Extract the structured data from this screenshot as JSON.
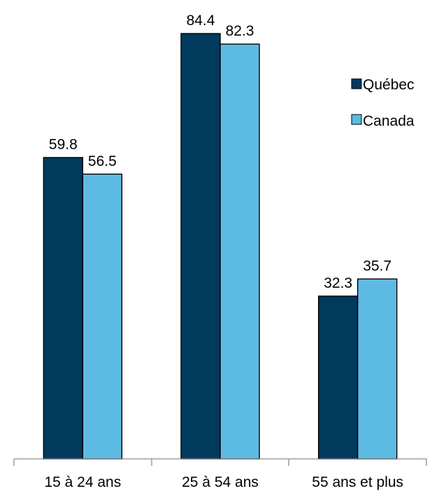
{
  "chart_data": {
    "type": "bar",
    "title": "",
    "xlabel": "",
    "ylabel": "",
    "categories": [
      "15 à 24 ans",
      "25 à 54 ans",
      "55 ans et plus"
    ],
    "series": [
      {
        "name": "Québec",
        "values": [
          59.8,
          84.4,
          32.3
        ],
        "color": "#003a5d"
      },
      {
        "name": "Canada",
        "values": [
          56.5,
          82.3,
          35.7
        ],
        "color": "#5dbbe3"
      }
    ],
    "ylim": [
      0,
      84.4
    ],
    "grid": false,
    "legend_position": "top-right"
  }
}
